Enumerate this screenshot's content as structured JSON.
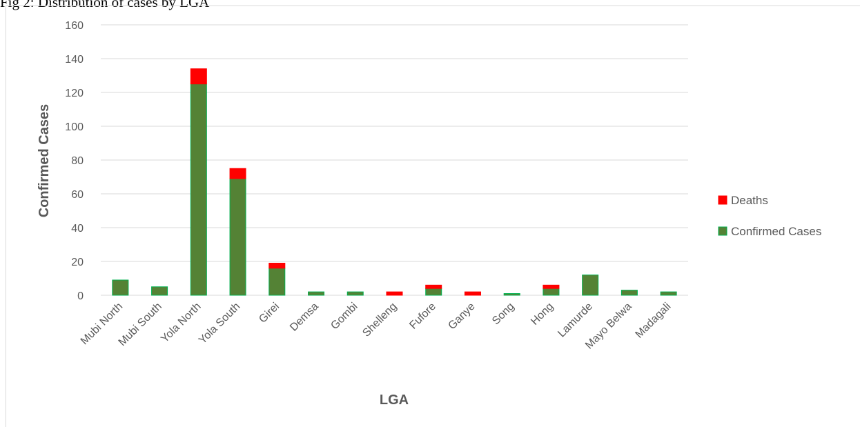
{
  "caption": "Fig 2: Distribution of cases by LGA",
  "chart_data": {
    "type": "bar",
    "stacked": true,
    "title": "",
    "xlabel": "LGA",
    "ylabel": "Confirmed Cases",
    "ylim": [
      0,
      160
    ],
    "yticks": [
      0,
      20,
      40,
      60,
      80,
      100,
      120,
      140,
      160
    ],
    "grid": true,
    "legend_position": "right",
    "categories": [
      "Mubi North",
      "Mubi South",
      "Yola North",
      "Yola South",
      "Girei",
      "Demsa",
      "Gombi",
      "Shelleng",
      "Fufore",
      "Ganye",
      "Song",
      "Hong",
      "Lamurde",
      "Mayo Belwa",
      "Madagali"
    ],
    "series": [
      {
        "name": "Confirmed Cases",
        "color": "#548235",
        "border": "#00b050",
        "values": [
          9,
          5,
          125,
          69,
          16,
          2,
          2,
          0,
          4,
          0,
          1,
          4,
          12,
          3,
          2
        ]
      },
      {
        "name": "Deaths",
        "color": "#ff0000",
        "border": "#ff0000",
        "values": [
          0,
          0,
          9,
          6,
          3,
          0,
          0,
          2,
          2,
          2,
          0,
          2,
          0,
          0,
          0
        ]
      }
    ],
    "legend_order": [
      "Deaths",
      "Confirmed Cases"
    ]
  }
}
